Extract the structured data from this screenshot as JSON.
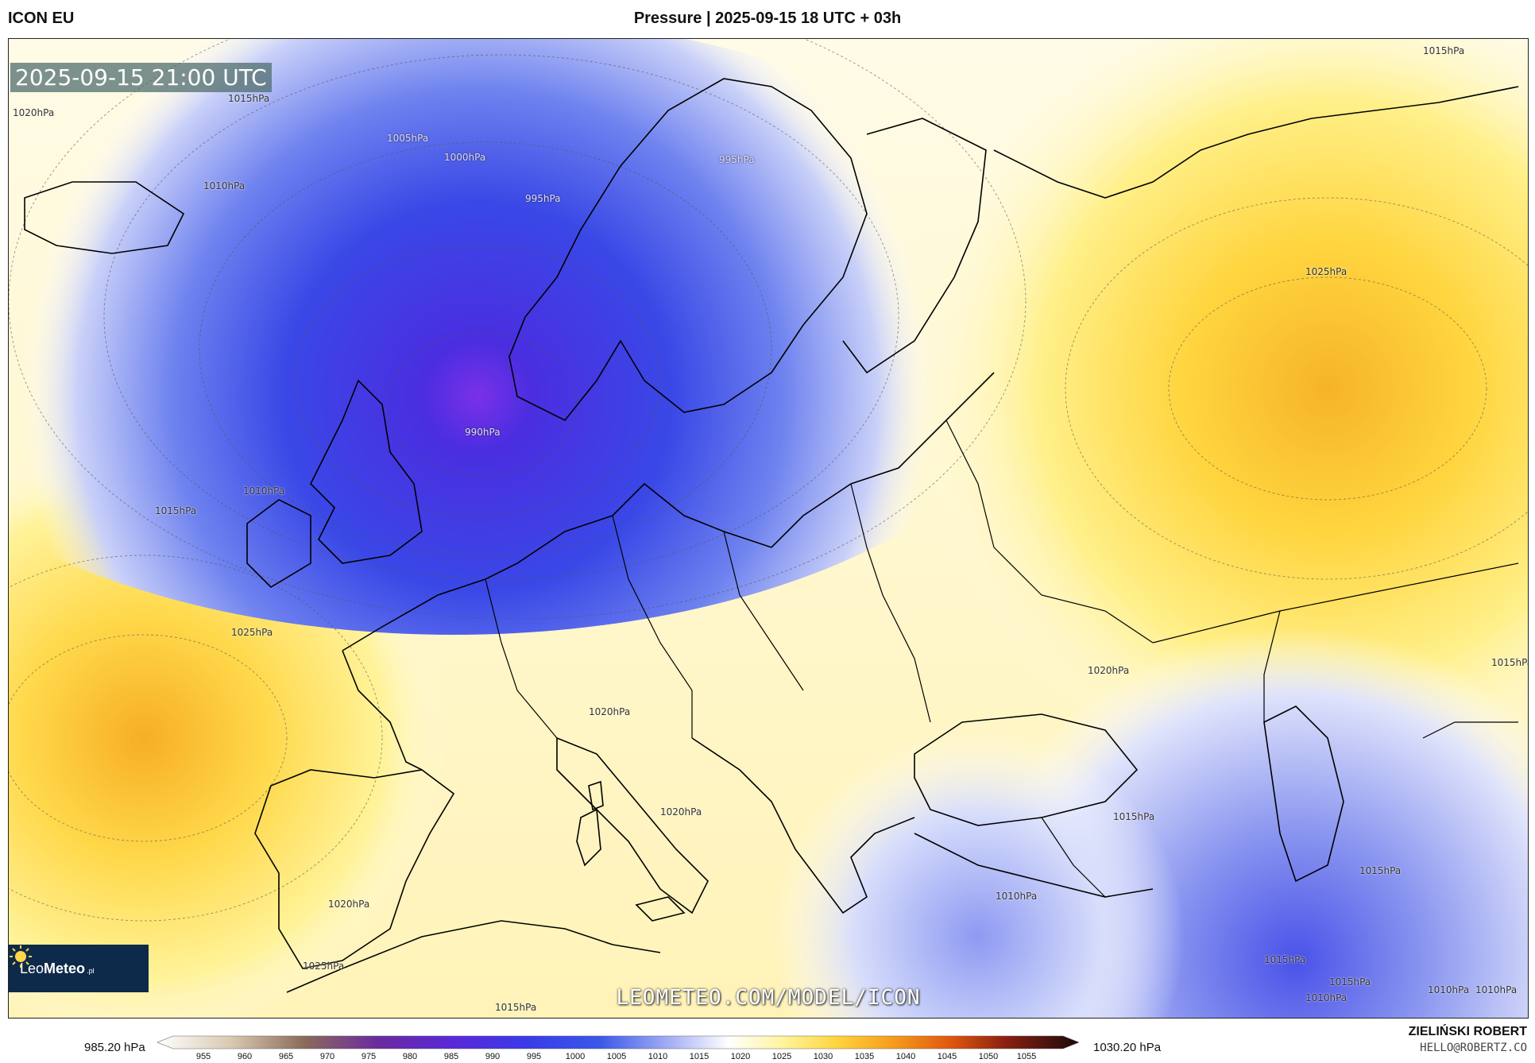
{
  "header": {
    "model": "ICON EU",
    "title": "Pressure | 2025-09-15 18 UTC + 03h"
  },
  "map": {
    "valid_time": "2025-09-15 21:00 UTC",
    "watermark": "LEOMETEO.COM/MODEL/ICON",
    "logo": {
      "leo": "Leo",
      "meteo": "Meteo",
      "suffix": ".pl"
    },
    "low_center_hpa": 985,
    "isobar_labels": [
      "1015hPa",
      "1020hPa",
      "1015hPa",
      "1005hPa",
      "1000hPa",
      "995hPa",
      "995hPa",
      "1010hPa",
      "1025hPa",
      "990hPa",
      "1010hPa",
      "1015hPa",
      "1025hPa",
      "1020hPa",
      "1020hPa",
      "1015hPa",
      "1020hPa",
      "1020hPa",
      "1010hPa",
      "1025hPa",
      "1015hPa",
      "1015hPa",
      "1015hPa",
      "1015hPa",
      "1010hPa",
      "1010hPa",
      "1010hPa",
      "1015hPa"
    ],
    "colors": {
      "low": "#6a3ae0",
      "mid_low": "#3b4fe6",
      "neutral": "#ffffff",
      "high": "#ffd84a"
    }
  },
  "legend": {
    "min_label": "985.20 hPa",
    "max_label": "1030.20 hPa",
    "ticks": [
      "955",
      "960",
      "965",
      "970",
      "975",
      "980",
      "985",
      "990",
      "995",
      "1000",
      "1005",
      "1010",
      "1015",
      "1020",
      "1025",
      "1030",
      "1035",
      "1040",
      "1045",
      "1050",
      "1055"
    ]
  },
  "footer": {
    "author": "ZIELIŃSKI ROBERT",
    "email": "HELLO@ROBERTZ.CO"
  }
}
